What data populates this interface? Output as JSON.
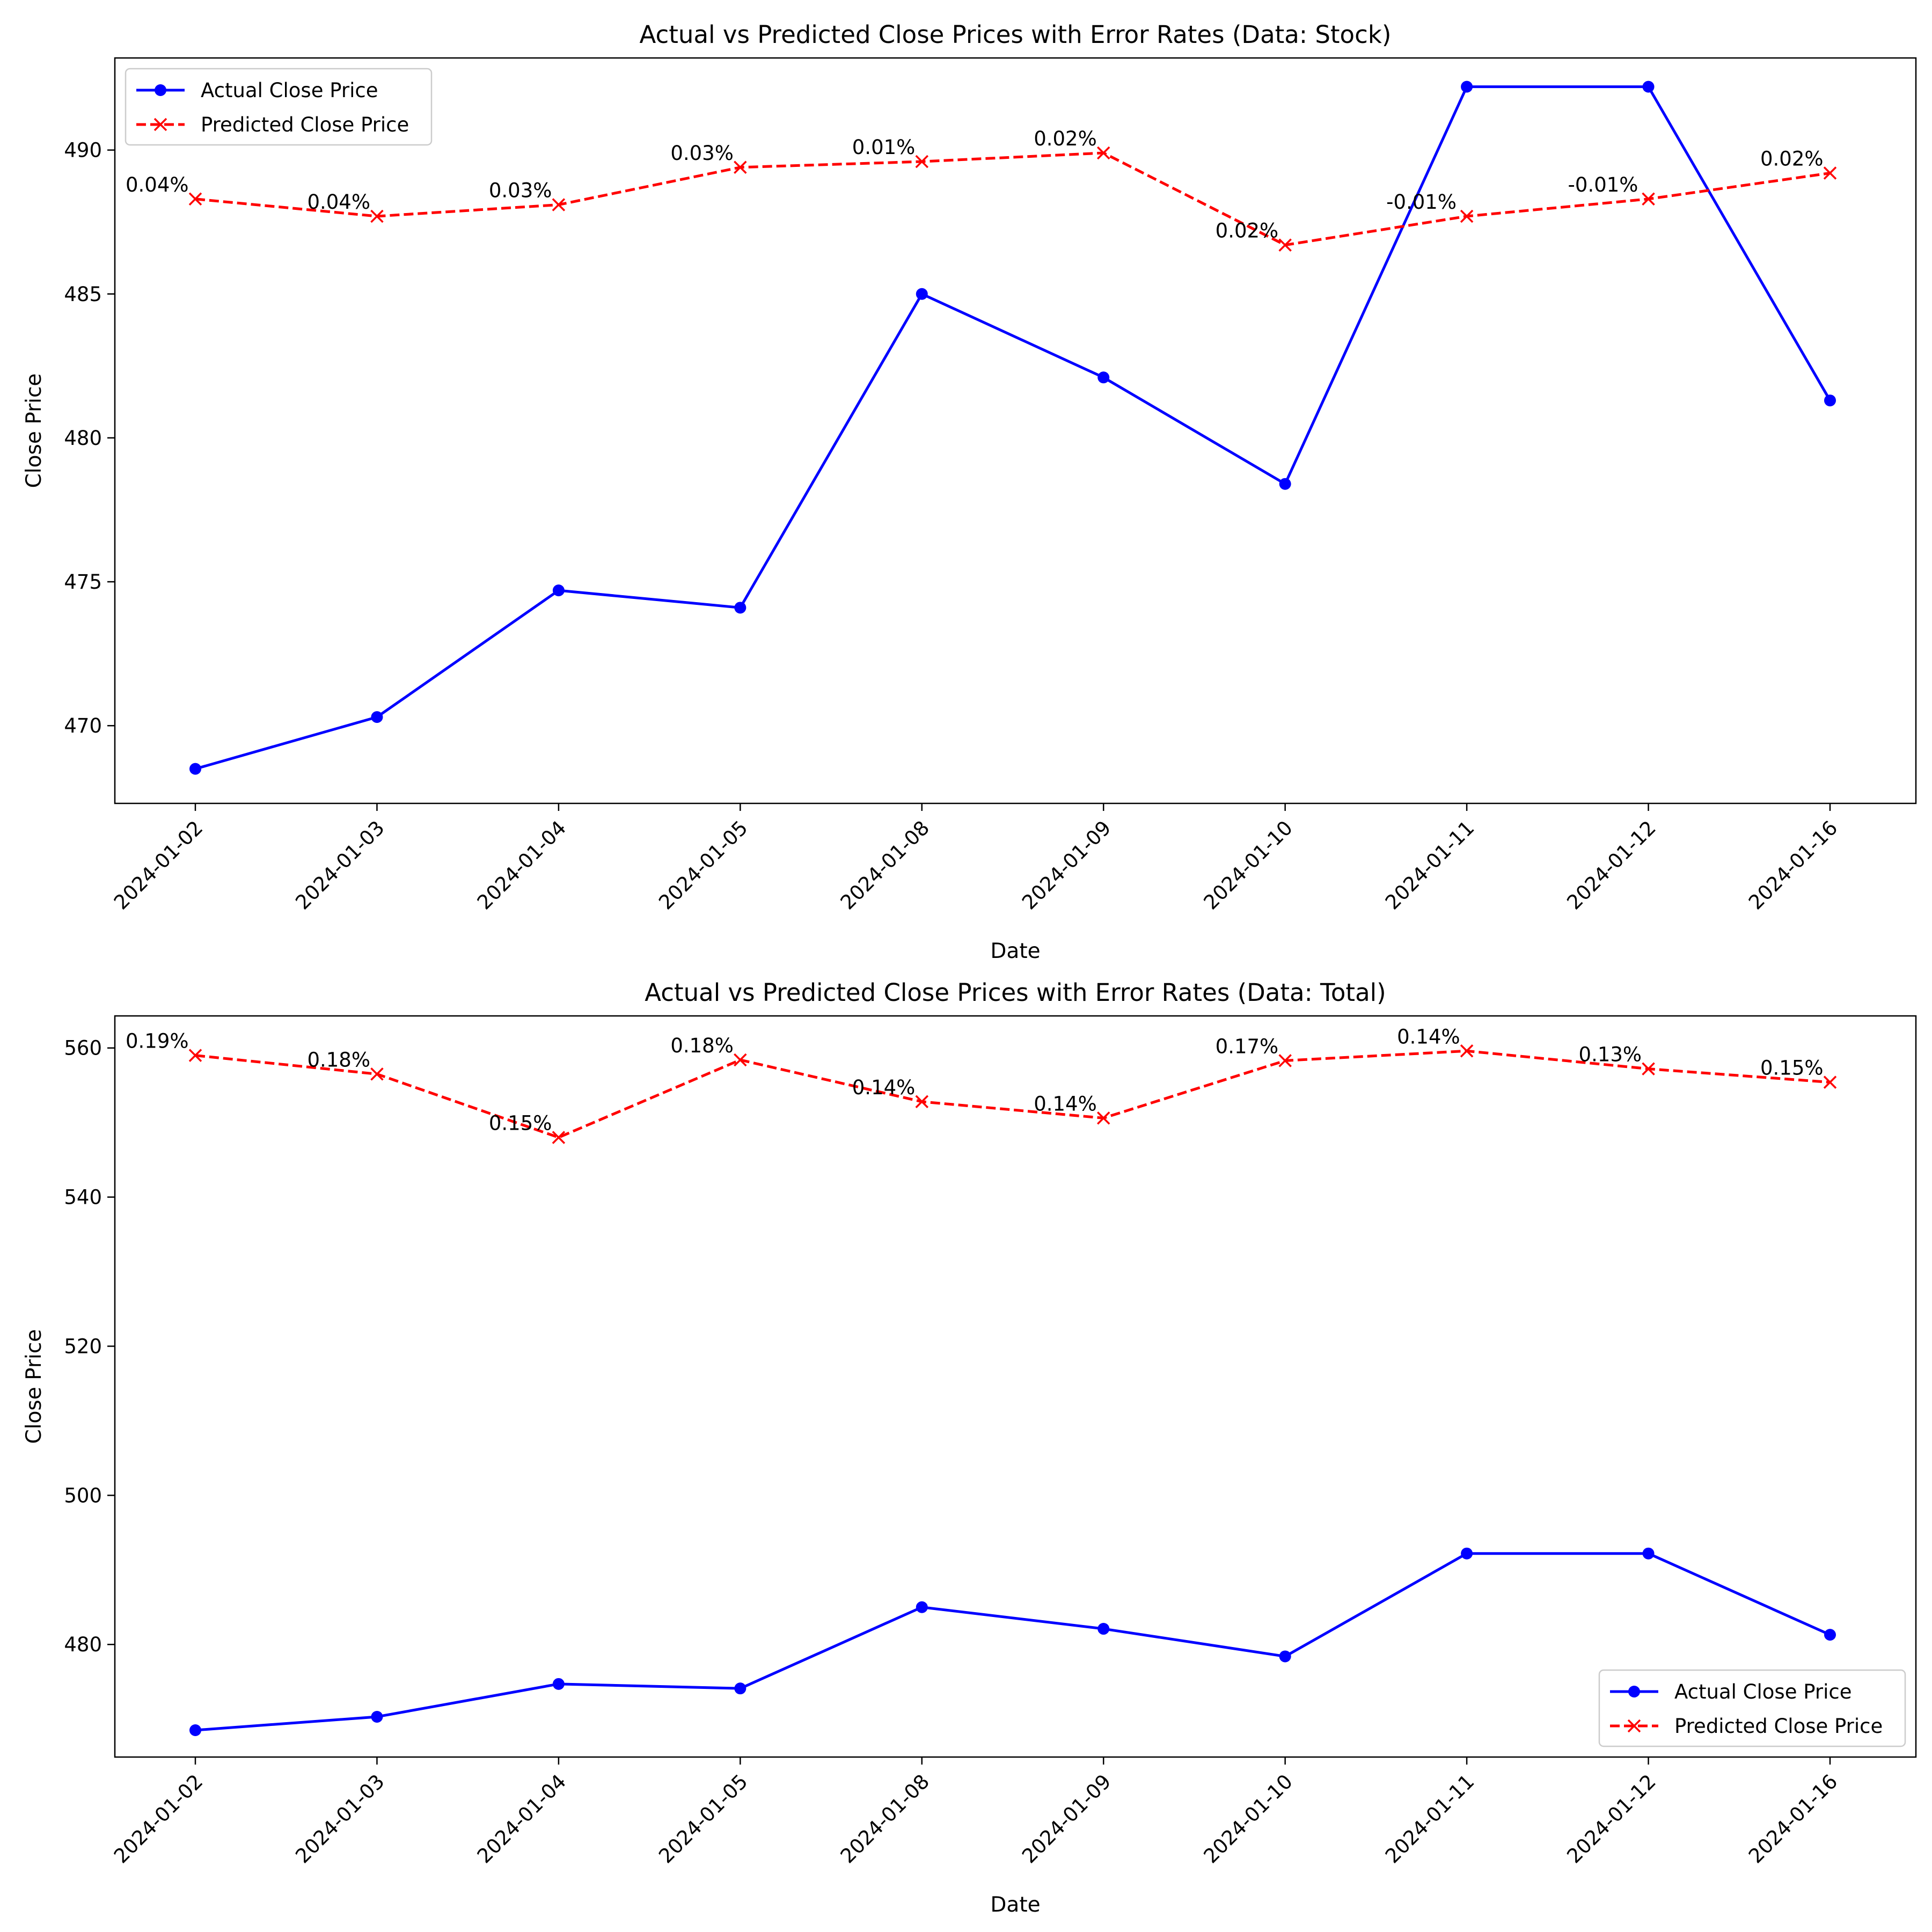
{
  "chart_data": [
    {
      "type": "line",
      "title": "Actual vs Predicted Close Prices with Error Rates (Data: Stock)",
      "xlabel": "Date",
      "ylabel": "Close Price",
      "x": [
        "2024-01-02",
        "2024-01-03",
        "2024-01-04",
        "2024-01-05",
        "2024-01-08",
        "2024-01-09",
        "2024-01-10",
        "2024-01-11",
        "2024-01-12",
        "2024-01-16"
      ],
      "ylim": [
        467.3,
        493.2
      ],
      "yticks": [
        470,
        475,
        480,
        485,
        490
      ],
      "grid": false,
      "legend_position": "top-left",
      "series": [
        {
          "name": "Actual Close Price",
          "color": "#0000ff",
          "style": "solid",
          "marker": "circle",
          "values": [
            468.5,
            470.3,
            474.7,
            474.1,
            485.0,
            482.1,
            478.4,
            492.2,
            492.2,
            481.3
          ]
        },
        {
          "name": "Predicted Close Price",
          "color": "#ff0000",
          "style": "dashed",
          "marker": "x",
          "values": [
            488.3,
            487.7,
            488.1,
            489.4,
            489.6,
            489.9,
            486.7,
            487.7,
            488.3,
            489.2
          ]
        }
      ],
      "annotations": [
        "0.04%",
        "0.04%",
        "0.03%",
        "0.03%",
        "0.01%",
        "0.02%",
        "0.02%",
        "-0.01%",
        "-0.01%",
        "0.02%"
      ]
    },
    {
      "type": "line",
      "title": "Actual vs Predicted Close Prices with Error Rates (Data: Total)",
      "xlabel": "Date",
      "ylabel": "Close Price",
      "x": [
        "2024-01-02",
        "2024-01-03",
        "2024-01-04",
        "2024-01-05",
        "2024-01-08",
        "2024-01-09",
        "2024-01-10",
        "2024-01-11",
        "2024-01-12",
        "2024-01-16"
      ],
      "ylim": [
        464.9,
        564.3
      ],
      "yticks": [
        480,
        500,
        520,
        540,
        560
      ],
      "grid": false,
      "legend_position": "bottom-right",
      "series": [
        {
          "name": "Actual Close Price",
          "color": "#0000ff",
          "style": "solid",
          "marker": "circle",
          "values": [
            468.5,
            470.3,
            474.7,
            474.1,
            485.0,
            482.1,
            478.4,
            492.2,
            492.2,
            481.3
          ]
        },
        {
          "name": "Predicted Close Price",
          "color": "#ff0000",
          "style": "dashed",
          "marker": "x",
          "values": [
            559.0,
            556.5,
            548.0,
            558.4,
            552.8,
            550.6,
            558.3,
            559.6,
            557.2,
            555.4
          ]
        }
      ],
      "annotations": [
        "0.19%",
        "0.18%",
        "0.15%",
        "0.18%",
        "0.14%",
        "0.14%",
        "0.17%",
        "0.14%",
        "0.13%",
        "0.15%"
      ]
    }
  ]
}
